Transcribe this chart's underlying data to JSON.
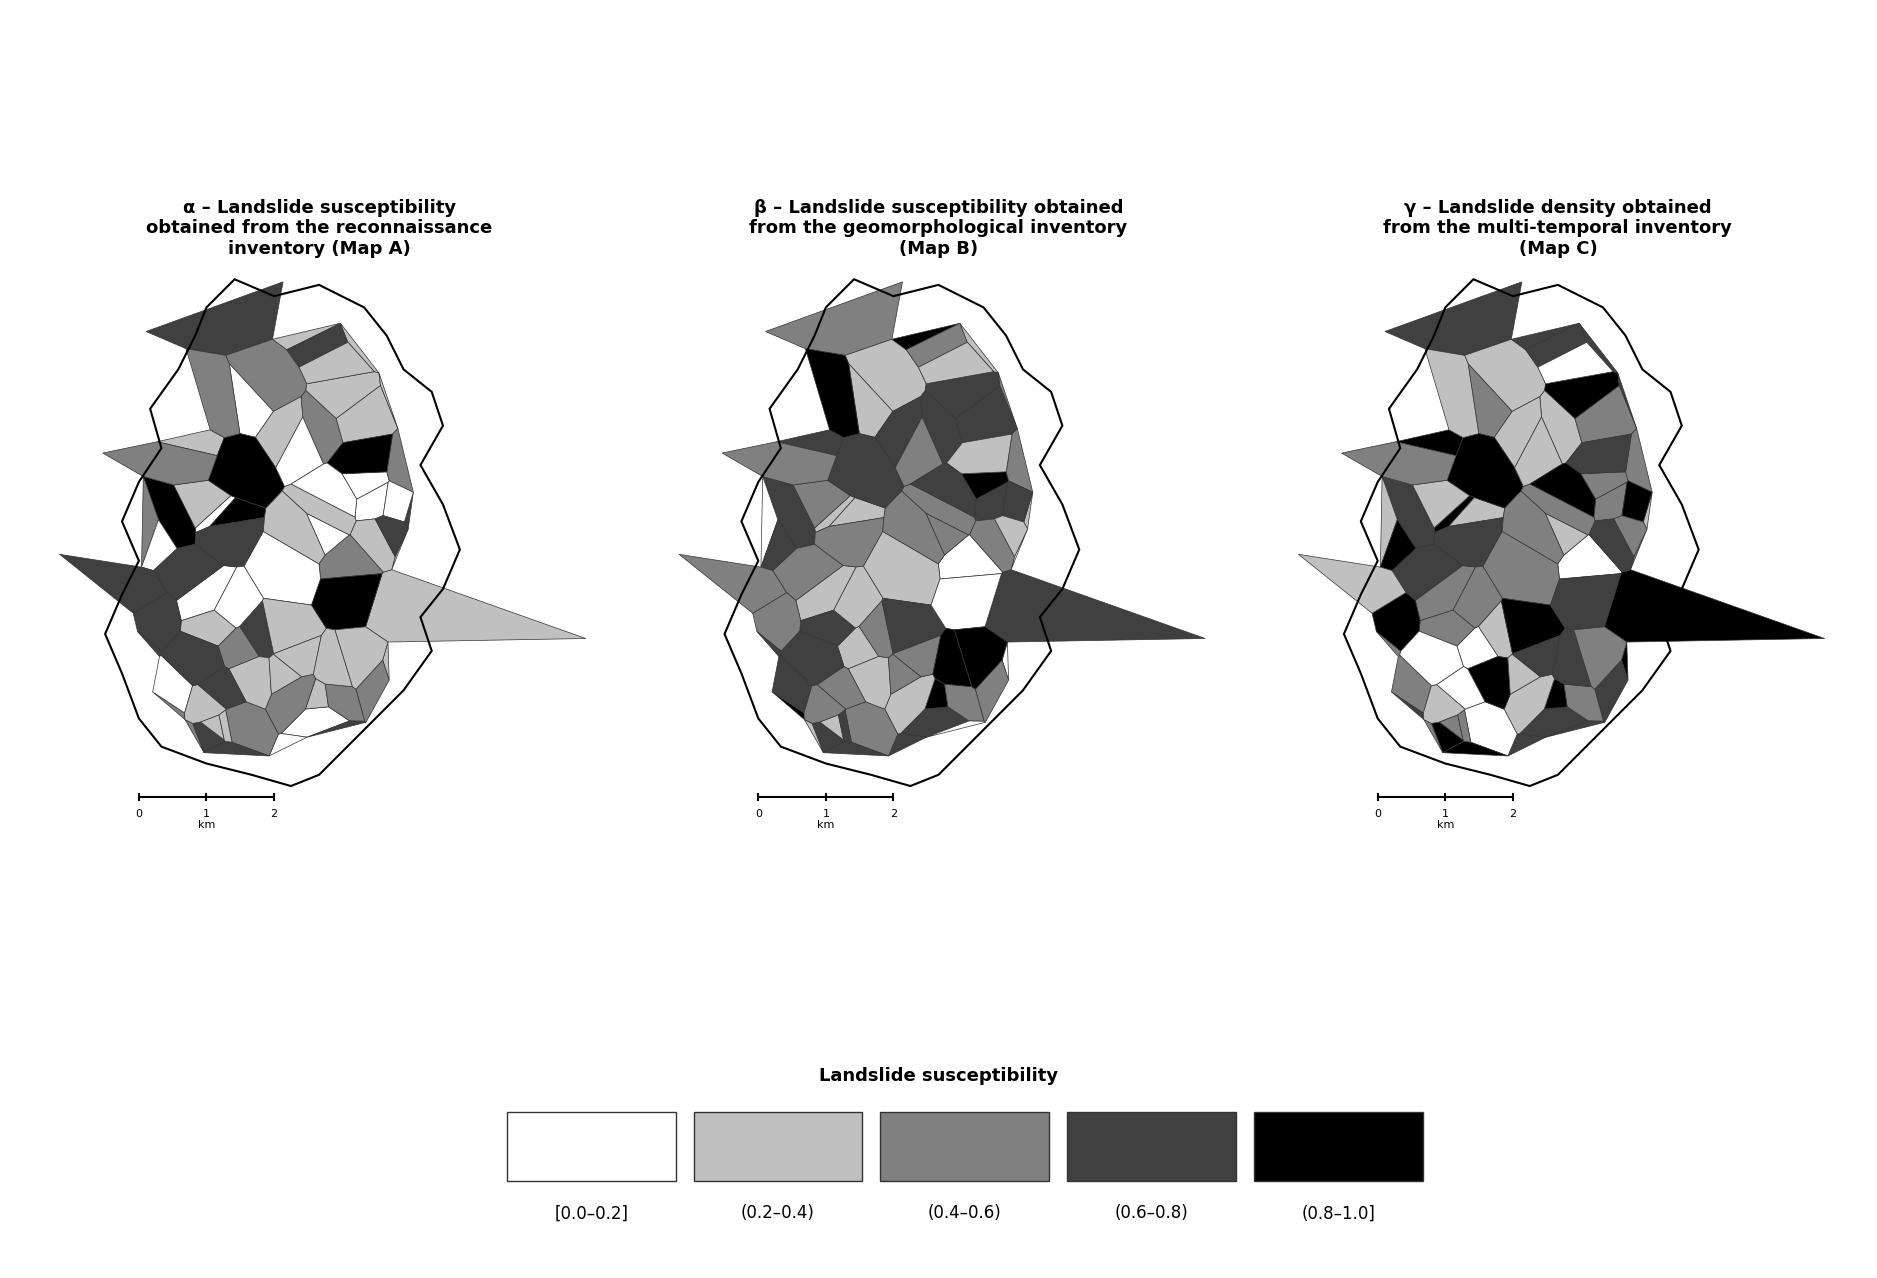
{
  "title_alpha": "α – Landslide susceptibility\nobtained from the reconnaissance\ninventory (Map A)",
  "title_beta": "β – Landslide susceptibility obtained\nfrom the geomorphological inventory\n(Map B)",
  "title_gamma": "γ – Landslide density obtained\nfrom the multi-temporal inventory\n(Map C)",
  "legend_title": "Landslide susceptibility",
  "legend_labels": [
    "[0.0–0.2]",
    "(0.2–0.4)",
    "(0.4–0.6)",
    "(0.6–0.8)",
    "(0.8–1.0]"
  ],
  "colors": [
    "#ffffff",
    "#c0c0c0",
    "#808080",
    "#404040",
    "#000000"
  ],
  "edge_color": "#555555",
  "background_color": "#ffffff",
  "title_fontsize": 13,
  "legend_title_fontsize": 13,
  "legend_label_fontsize": 12
}
